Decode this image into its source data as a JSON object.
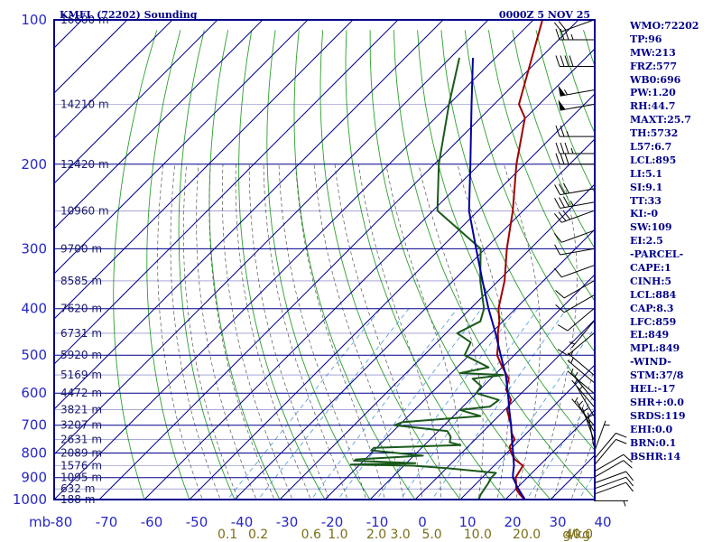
{
  "header": {
    "station": "KMFL (72202) Sounding",
    "valid_time": "0000Z  5 NOV 25"
  },
  "indices": [
    "WMO:72202",
    "TP:96",
    "MW:213",
    "FRZ:577",
    "WB0:696",
    "PW:1.20",
    "RH:44.7",
    "MAXT:25.7",
    "TH:5732",
    "L57:6.7",
    "LCL:895",
    "LI:5.1",
    "SI:9.1",
    "TT:33",
    "KI:-0",
    "SW:109",
    "EI:2.5",
    "-PARCEL-",
    "CAPE:1",
    "CINH:5",
    "LCL:884",
    "CAP:8.3",
    "LFC:859",
    "EL:849",
    "MPL:849",
    "-WIND-",
    "STM:37/8",
    "HEL:-17",
    "SHR+:0.0",
    "SRDS:119",
    "EHI:0.0",
    "BRN:0.1",
    "BSHR:14"
  ],
  "chart_data": {
    "type": "line",
    "title": "KMFL (72202) Sounding",
    "subtitle": "0000Z  5 NOV 25",
    "xlabel": "",
    "ylabel": "",
    "y_axis_unit": "mb",
    "mixing_ratio_unit": "g/kg",
    "y_scale": "log (pressure)",
    "x_skewed": true,
    "ylim_mb": [
      1000,
      100
    ],
    "xlim_c": [
      -80,
      40
    ],
    "pressure_ticks": [
      "100",
      "200",
      "300",
      "400",
      "500",
      "600",
      "700",
      "800",
      "900",
      "1000"
    ],
    "pressure_tick_values": [
      100,
      200,
      300,
      400,
      500,
      600,
      700,
      800,
      900,
      1000
    ],
    "temp_ticks": [
      "-80",
      "-70",
      "-60",
      "-50",
      "-40",
      "-30",
      "-20",
      "-10",
      "0",
      "10",
      "20",
      "30",
      "40"
    ],
    "mixing_ratio_labels": [
      "0.1",
      "0.2",
      "0.6",
      "1.0",
      "2.0",
      "3.0",
      "5.0",
      "10.0",
      "20.0",
      "40.0"
    ],
    "height_labels": [
      {
        "p": 100,
        "label": "16600 m"
      },
      {
        "p": 150,
        "label": "14210 m"
      },
      {
        "p": 200,
        "label": "12420 m"
      },
      {
        "p": 250,
        "label": "10960 m"
      },
      {
        "p": 300,
        "label": "9700 m"
      },
      {
        "p": 350,
        "label": "8585 m"
      },
      {
        "p": 400,
        "label": "7620 m"
      },
      {
        "p": 450,
        "label": "6731 m"
      },
      {
        "p": 500,
        "label": "5920 m"
      },
      {
        "p": 550,
        "label": "5169 m"
      },
      {
        "p": 600,
        "label": "4472 m"
      },
      {
        "p": 650,
        "label": "3821 m"
      },
      {
        "p": 700,
        "label": "3207 m"
      },
      {
        "p": 750,
        "label": "2631 m"
      },
      {
        "p": 800,
        "label": "2089 m"
      },
      {
        "p": 850,
        "label": "1576 m"
      },
      {
        "p": 900,
        "label": "1095 m"
      },
      {
        "p": 950,
        "label": "632 m"
      },
      {
        "p": 1000,
        "label": "188 m"
      }
    ],
    "grid": true,
    "colors": {
      "frame": "#00008b",
      "isobar": "#00008b",
      "isotherm": "#00008b",
      "dry_adiabat": "#2ca02c",
      "moist_adiabat": "#555555",
      "mixing_ratio": "#4a9ad6",
      "temperature": "#a00000",
      "dewpoint": "#1a5a1a",
      "parcel": "#0000a0",
      "wind": "#000000",
      "mixing_ratio_text": "#7a6e18",
      "index_text": "#00008b"
    },
    "series": [
      {
        "name": "",
        "kind": "temperature",
        "points": [
          [
            1006,
            24.8
          ],
          [
            975,
            22.0
          ],
          [
            950,
            20.0
          ],
          [
            925,
            18.8
          ],
          [
            900,
            17.4
          ],
          [
            880,
            17.0
          ],
          [
            850,
            16.4
          ],
          [
            825,
            13.2
          ],
          [
            800,
            11.0
          ],
          [
            775,
            9.2
          ],
          [
            750,
            8.8
          ],
          [
            725,
            6.5
          ],
          [
            700,
            4.8
          ],
          [
            650,
            0.5
          ],
          [
            620,
            -0.8
          ],
          [
            600,
            -3.0
          ],
          [
            590,
            -4.2
          ],
          [
            560,
            -6.0
          ],
          [
            525,
            -10.6
          ],
          [
            500,
            -13.8
          ],
          [
            470,
            -16.4
          ],
          [
            450,
            -18.5
          ],
          [
            425,
            -20.8
          ],
          [
            400,
            -23.8
          ],
          [
            350,
            -28.6
          ],
          [
            300,
            -35.2
          ],
          [
            250,
            -42.3
          ],
          [
            200,
            -51.8
          ],
          [
            160,
            -60.2
          ],
          [
            150,
            -64.5
          ],
          [
            100,
            -78.0
          ]
        ]
      },
      {
        "name": "",
        "kind": "dewpoint",
        "points": [
          [
            1006,
            14.2
          ],
          [
            975,
            13.4
          ],
          [
            950,
            13.0
          ],
          [
            925,
            12.6
          ],
          [
            900,
            12.0
          ],
          [
            880,
            12.0
          ],
          [
            860,
            0.0
          ],
          [
            850,
            -8.0
          ],
          [
            845,
            -22.0
          ],
          [
            840,
            -8.0
          ],
          [
            830,
            -22.0
          ],
          [
            825,
            -22.0
          ],
          [
            810,
            -8.0
          ],
          [
            790,
            -20.6
          ],
          [
            780,
            -20.6
          ],
          [
            770,
            -2.0
          ],
          [
            760,
            -5.0
          ],
          [
            740,
            -6.0
          ],
          [
            720,
            -8.0
          ],
          [
            700,
            -21.0
          ],
          [
            690,
            -20.0
          ],
          [
            670,
            -4.0
          ],
          [
            650,
            -10.0
          ],
          [
            640,
            -4.0
          ],
          [
            620,
            -3.5
          ],
          [
            600,
            -10.0
          ],
          [
            580,
            -10.5
          ],
          [
            560,
            -14.0
          ],
          [
            550,
            -8.0
          ],
          [
            545,
            -18.0
          ],
          [
            530,
            -13.0
          ],
          [
            500,
            -21.0
          ],
          [
            470,
            -22.5
          ],
          [
            450,
            -27.5
          ],
          [
            425,
            -25.0
          ],
          [
            400,
            -27.0
          ],
          [
            350,
            -34.0
          ],
          [
            300,
            -41.0
          ],
          [
            250,
            -59.0
          ],
          [
            200,
            -69.0
          ],
          [
            150,
            -80.0
          ],
          [
            120,
            -88.0
          ]
        ]
      },
      {
        "name": "",
        "kind": "parcel",
        "points": [
          [
            1006,
            24.8
          ],
          [
            950,
            20.5
          ],
          [
            900,
            16.8
          ],
          [
            884,
            16.0
          ],
          [
            850,
            14.4
          ],
          [
            800,
            11.4
          ],
          [
            750,
            8.2
          ],
          [
            700,
            4.8
          ],
          [
            650,
            1.0
          ],
          [
            600,
            -3.0
          ],
          [
            550,
            -7.5
          ],
          [
            500,
            -13.0
          ],
          [
            450,
            -19.0
          ],
          [
            400,
            -26.0
          ],
          [
            350,
            -33.5
          ],
          [
            300,
            -42.0
          ],
          [
            250,
            -52.0
          ],
          [
            200,
            -62.0
          ],
          [
            150,
            -75.0
          ],
          [
            120,
            -85.0
          ]
        ]
      }
    ],
    "winds": [
      {
        "p": 1006,
        "dir": 90,
        "kt": 5
      },
      {
        "p": 975,
        "dir": 70,
        "kt": 10
      },
      {
        "p": 950,
        "dir": 70,
        "kt": 10
      },
      {
        "p": 925,
        "dir": 70,
        "kt": 10
      },
      {
        "p": 900,
        "dir": 60,
        "kt": 10
      },
      {
        "p": 875,
        "dir": 60,
        "kt": 10
      },
      {
        "p": 850,
        "dir": 40,
        "kt": 10
      },
      {
        "p": 825,
        "dir": 40,
        "kt": 10
      },
      {
        "p": 800,
        "dir": 20,
        "kt": 5
      },
      {
        "p": 775,
        "dir": 350,
        "kt": 5
      },
      {
        "p": 750,
        "dir": 340,
        "kt": 5
      },
      {
        "p": 720,
        "dir": 330,
        "kt": 5
      },
      {
        "p": 700,
        "dir": 320,
        "kt": 5
      },
      {
        "p": 670,
        "dir": 330,
        "kt": 5
      },
      {
        "p": 640,
        "dir": 320,
        "kt": 5
      },
      {
        "p": 620,
        "dir": 320,
        "kt": 5
      },
      {
        "p": 600,
        "dir": 310,
        "kt": 5
      },
      {
        "p": 570,
        "dir": 310,
        "kt": 5
      },
      {
        "p": 550,
        "dir": 310,
        "kt": 5
      },
      {
        "p": 450,
        "dir": 230,
        "kt": 10
      },
      {
        "p": 425,
        "dir": 220,
        "kt": 5
      },
      {
        "p": 400,
        "dir": 230,
        "kt": 10
      },
      {
        "p": 375,
        "dir": 240,
        "kt": 10
      },
      {
        "p": 350,
        "dir": 240,
        "kt": 10
      },
      {
        "p": 325,
        "dir": 250,
        "kt": 10
      },
      {
        "p": 300,
        "dir": 260,
        "kt": 10
      },
      {
        "p": 275,
        "dir": 250,
        "kt": 10
      },
      {
        "p": 250,
        "dir": 250,
        "kt": 30
      },
      {
        "p": 240,
        "dir": 260,
        "kt": 35
      },
      {
        "p": 225,
        "dir": 260,
        "kt": 30
      },
      {
        "p": 200,
        "dir": 270,
        "kt": 30
      },
      {
        "p": 190,
        "dir": 270,
        "kt": 35
      },
      {
        "p": 175,
        "dir": 270,
        "kt": 25
      },
      {
        "p": 150,
        "dir": 260,
        "kt": 50
      },
      {
        "p": 140,
        "dir": 260,
        "kt": 55
      },
      {
        "p": 125,
        "dir": 270,
        "kt": 40
      },
      {
        "p": 110,
        "dir": 270,
        "kt": 35
      },
      {
        "p": 100,
        "dir": 250,
        "kt": 20
      }
    ]
  }
}
